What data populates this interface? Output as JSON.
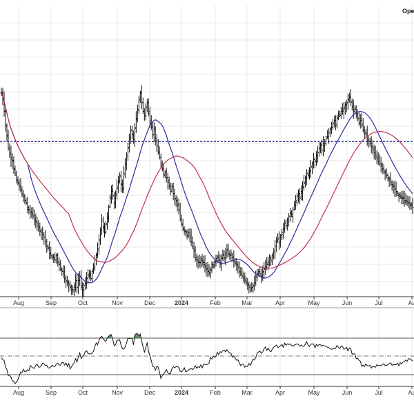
{
  "header": {
    "text": "Open"
  },
  "chart_data": [
    {
      "type": "ohlc",
      "panel": "price",
      "x_labels": [
        "Aug",
        "Sep",
        "Oct",
        "Nov",
        "Dec",
        "2024",
        "Feb",
        "Mar",
        "Apr",
        "May",
        "Jun",
        "Jul",
        "Au"
      ],
      "x_label_styles": [
        "normal",
        "normal",
        "normal",
        "normal",
        "normal",
        "bold",
        "normal",
        "normal",
        "normal",
        "normal",
        "normal",
        "normal",
        "normal"
      ],
      "y_scale": "relative (no price axis shown)",
      "bars_approx_close": [
        88,
        85,
        80,
        74,
        69,
        64,
        61,
        59,
        58,
        55,
        53,
        50,
        49,
        47,
        46,
        44,
        43,
        41,
        40,
        38,
        37,
        36,
        35,
        34,
        33,
        32,
        30,
        29,
        28,
        27,
        26,
        25,
        23,
        21,
        20,
        18,
        17,
        16,
        16,
        15,
        17,
        14,
        13,
        11,
        10,
        9,
        7,
        6,
        5,
        4,
        3,
        2,
        2,
        3,
        6,
        3,
        6,
        8,
        4,
        2,
        4,
        5,
        7,
        8,
        9,
        7,
        10,
        12,
        15,
        17,
        20,
        24,
        28,
        32,
        29,
        27,
        31,
        34,
        38,
        42,
        45,
        43,
        40,
        44,
        47,
        49,
        52,
        48,
        46,
        53,
        57,
        61,
        64,
        68,
        72,
        70,
        67,
        73,
        77,
        81,
        85,
        88,
        84,
        80,
        78,
        82,
        84,
        79,
        75,
        73,
        70,
        72,
        68,
        65,
        62,
        60,
        57,
        55,
        52,
        53,
        51,
        49,
        47,
        45,
        47,
        44,
        42,
        41,
        39,
        37,
        33,
        31,
        29,
        28,
        27,
        26,
        27,
        25,
        23,
        21,
        19,
        16,
        15,
        14,
        14,
        15,
        14,
        13,
        12,
        11,
        10,
        9,
        11,
        12,
        13,
        14,
        15,
        16,
        15,
        14,
        16,
        17,
        16,
        18,
        19,
        18,
        17,
        18,
        16,
        15,
        14,
        13,
        12,
        10,
        9,
        8,
        7,
        6,
        5,
        4,
        3,
        2,
        3,
        4,
        5,
        8,
        9,
        10,
        9,
        8,
        10,
        11,
        12,
        13,
        14,
        16,
        15,
        17,
        19,
        21,
        23,
        24,
        22,
        25,
        27,
        29,
        31,
        30,
        32,
        34,
        36,
        35,
        37,
        39,
        41,
        43,
        44,
        42,
        45,
        47,
        49,
        51,
        53,
        52,
        54,
        56,
        57,
        59,
        58,
        60,
        62,
        64,
        65,
        63,
        66,
        67,
        68,
        69,
        71,
        72,
        73,
        75,
        76,
        74,
        77,
        78,
        79,
        80,
        81,
        82,
        83,
        84,
        85,
        86,
        84,
        82,
        80,
        81,
        79,
        77,
        75,
        76,
        74,
        72,
        71,
        70,
        68,
        67,
        66,
        64,
        63,
        62,
        61,
        60,
        58,
        57,
        56,
        55,
        54,
        53,
        52,
        51,
        50,
        49,
        48,
        47,
        46,
        45,
        44,
        43,
        43,
        42,
        42,
        41,
        41,
        40,
        40,
        39,
        39,
        38
      ],
      "horizontal_line": {
        "style": "dotted",
        "color": "#1a237e"
      },
      "moving_averages": [
        {
          "color": "#2a2aa0"
        },
        {
          "color": "#c0304a"
        }
      ]
    },
    {
      "type": "line",
      "panel": "oscillator",
      "bands": {
        "upper": "solid",
        "mid": "dash-dot",
        "lower": "solid"
      },
      "overbought_fill_color": "#3a7a3a",
      "x_labels": [
        "Aug",
        "Sep",
        "Oct",
        "Nov",
        "Dec",
        "2024",
        "Feb",
        "Mar",
        "Apr",
        "May",
        "Jun",
        "Jul",
        "Au"
      ]
    }
  ],
  "colors": {
    "bars": "#111111",
    "grid": "#e8e8e8",
    "axis": "#333333",
    "ma_fast": "#2a2aa0",
    "ma_slow": "#c0304a",
    "hline": "#1a237e",
    "osc_line": "#111111",
    "osc_fill": "#3a7a3a"
  }
}
